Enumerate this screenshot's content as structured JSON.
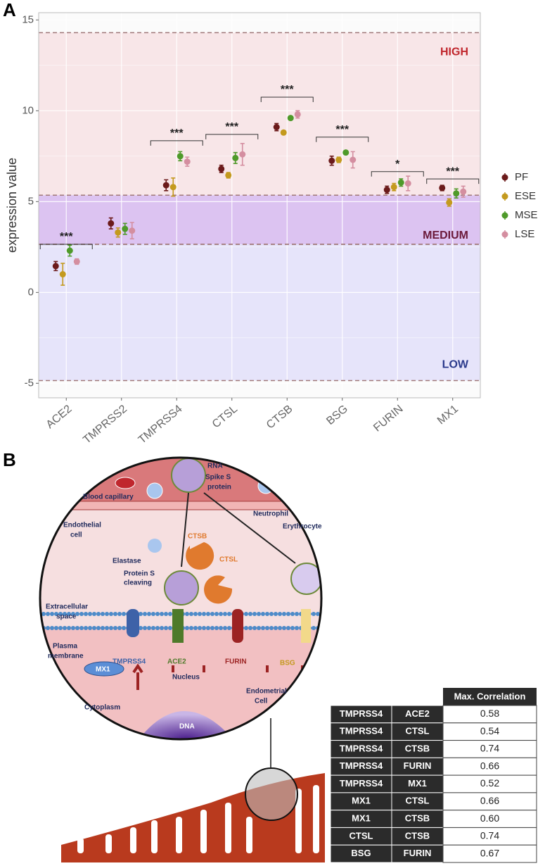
{
  "panels": {
    "a": "A",
    "b": "B"
  },
  "chart_data": {
    "type": "dot-errorbar",
    "y_label": "expression value",
    "categories": [
      "ACE2",
      "TMPRSS2",
      "TMPRSS4",
      "CTSL",
      "CTSB",
      "BSG",
      "FURIN",
      "MX1"
    ],
    "series": [
      {
        "name": "PF",
        "color": "#6b1a1a",
        "values": [
          1.45,
          3.8,
          5.9,
          6.8,
          9.1,
          7.25,
          5.65,
          5.75
        ],
        "errors": [
          0.25,
          0.3,
          0.3,
          0.2,
          0.2,
          0.25,
          0.2,
          0.15
        ]
      },
      {
        "name": "ESE",
        "color": "#c49a1e",
        "values": [
          1.0,
          3.3,
          5.8,
          6.45,
          8.8,
          7.3,
          5.8,
          4.95
        ],
        "errors": [
          0.6,
          0.25,
          0.5,
          0.15,
          0.1,
          0.15,
          0.2,
          0.2
        ]
      },
      {
        "name": "MSE",
        "color": "#4f9a2a",
        "values": [
          2.3,
          3.5,
          7.5,
          7.4,
          9.6,
          7.7,
          6.05,
          5.45
        ],
        "errors": [
          0.3,
          0.3,
          0.25,
          0.3,
          0.1,
          0.1,
          0.2,
          0.25
        ]
      },
      {
        "name": "LSE",
        "color": "#d48ea0",
        "values": [
          1.7,
          3.4,
          7.2,
          7.6,
          9.8,
          7.3,
          6.0,
          5.55
        ],
        "errors": [
          0.15,
          0.45,
          0.25,
          0.6,
          0.2,
          0.45,
          0.4,
          0.3
        ]
      }
    ],
    "ylim": [
      -5.8,
      15.4
    ],
    "yticks": [
      -5,
      0,
      5,
      10,
      15
    ],
    "grid": true,
    "legend": "right",
    "bands": [
      {
        "label": "HIGH",
        "range": [
          5.35,
          14.3
        ],
        "color": "#f8e6e8",
        "text_color": "#c0272d"
      },
      {
        "label": "MEDIUM",
        "range": [
          2.65,
          5.35
        ],
        "color": "#dcc3f1",
        "text_color": "#6b1a3a"
      },
      {
        "label": "LOW",
        "range": [
          -4.85,
          2.65
        ],
        "color": "#e6e4fa",
        "text_color": "#2b3a8c"
      }
    ],
    "significance": [
      {
        "category": 0,
        "label": "***",
        "y": 2.65
      },
      {
        "category": 2,
        "label": "***",
        "y": 8.35
      },
      {
        "category": 3,
        "label": "***",
        "y": 8.7
      },
      {
        "category": 4,
        "label": "***",
        "y": 10.75
      },
      {
        "category": 5,
        "label": "***",
        "y": 8.55
      },
      {
        "category": 6,
        "label": "*",
        "y": 6.65
      },
      {
        "category": 7,
        "label": "***",
        "y": 6.25
      }
    ]
  },
  "diagram": {
    "rna": "RNA",
    "spike": "Spike S",
    "protein": "protein",
    "capillary": "Blood capillary",
    "neutrophil": "Neutrophil",
    "erythrocyte": "Erythrocyte",
    "endothelial": "Endothelial",
    "cell": "cell",
    "ctsb": "CTSB",
    "ctsl": "CTSL",
    "elastase": "Elastase",
    "cleaving1": "Protein S",
    "cleaving2": "cleaving",
    "extra1": "Extracellular",
    "extra2": "space",
    "plasma1": "Plasma",
    "plasma2": "membrane",
    "tmprss4": "TMPRSS4",
    "ace2": "ACE2",
    "furin": "FURIN",
    "bsg": "BSG",
    "mx1": "MX1",
    "nucleus": "Nucleus",
    "dna": "DNA",
    "cytoplasm": "Cytoplasm",
    "endo1": "Endometrial",
    "endo2": "Cell"
  },
  "table": {
    "header": "Max. Correlation",
    "rows": [
      [
        "TMPRSS4",
        "ACE2",
        "0.58"
      ],
      [
        "TMPRSS4",
        "CTSL",
        "0.54"
      ],
      [
        "TMPRSS4",
        "CTSB",
        "0.74"
      ],
      [
        "TMPRSS4",
        "FURIN",
        "0.66"
      ],
      [
        "TMPRSS4",
        "MX1",
        "0.52"
      ],
      [
        "MX1",
        "CTSL",
        "0.66"
      ],
      [
        "MX1",
        "CTSB",
        "0.60"
      ],
      [
        "CTSL",
        "CTSB",
        "0.74"
      ],
      [
        "BSG",
        "FURIN",
        "0.67"
      ]
    ]
  }
}
